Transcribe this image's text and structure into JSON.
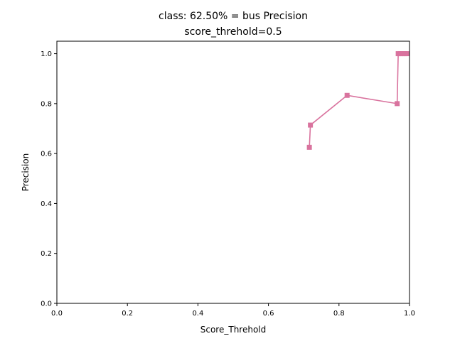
{
  "chart_data": {
    "type": "line",
    "title_line1": "class: 62.50% = bus Precision",
    "title_line2": "score_threhold=0.5",
    "xlabel": "Score_Threhold",
    "ylabel": "Precision",
    "xlim": [
      0,
      1
    ],
    "ylim": [
      0,
      1.05
    ],
    "x_ticks": [
      "0.0",
      "0.2",
      "0.4",
      "0.6",
      "0.8",
      "1.0"
    ],
    "y_ticks": [
      "0.0",
      "0.2",
      "0.4",
      "0.6",
      "0.8",
      "1.0"
    ],
    "grid": false,
    "series": [
      {
        "color": "#d9739e",
        "marker": "square",
        "points": [
          {
            "x": 0.716,
            "y": 0.625
          },
          {
            "x": 0.719,
            "y": 0.714
          },
          {
            "x": 0.823,
            "y": 0.833
          },
          {
            "x": 0.965,
            "y": 0.8
          },
          {
            "x": 0.968,
            "y": 1.0
          },
          {
            "x": 0.975,
            "y": 1.0
          },
          {
            "x": 0.981,
            "y": 1.0
          },
          {
            "x": 0.987,
            "y": 1.0
          },
          {
            "x": 0.993,
            "y": 1.0
          }
        ]
      }
    ]
  }
}
